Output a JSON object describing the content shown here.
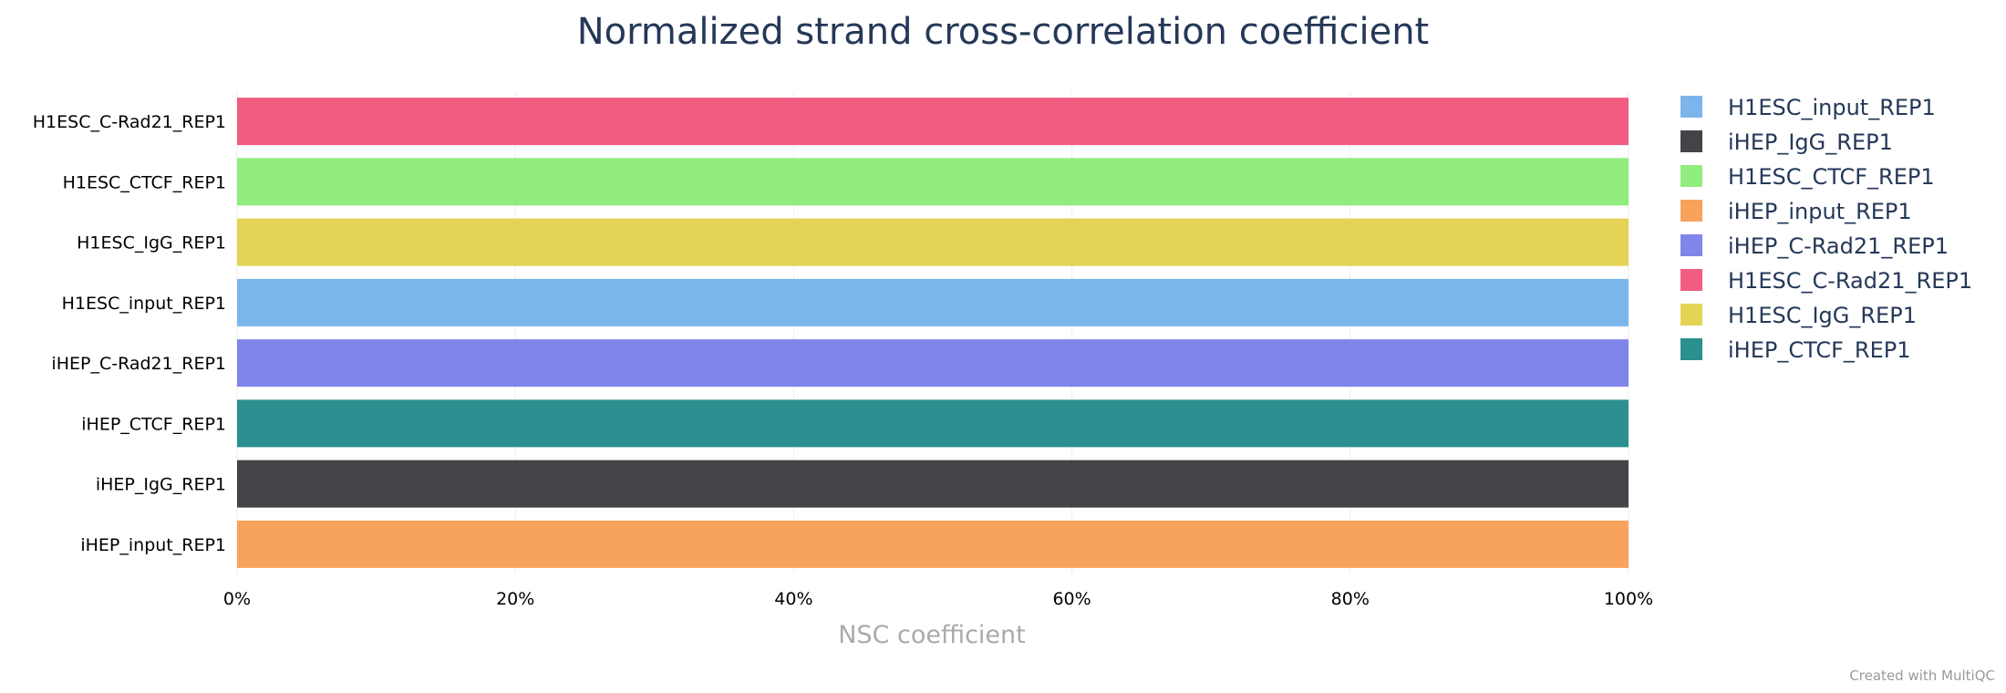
{
  "chart_data": {
    "type": "bar",
    "orientation": "horizontal",
    "stacked": true,
    "title": "Normalized strand cross-correlation coefficient",
    "xlabel": "NSC coefficient",
    "ylabel": "",
    "xlim": [
      0,
      100
    ],
    "x_ticks": [
      "0%",
      "20%",
      "40%",
      "60%",
      "80%",
      "100%"
    ],
    "grid": true,
    "legend_position": "right",
    "categories": [
      "H1ESC_C-Rad21_REP1",
      "H1ESC_CTCF_REP1",
      "H1ESC_IgG_REP1",
      "H1ESC_input_REP1",
      "iHEP_C-Rad21_REP1",
      "iHEP_CTCF_REP1",
      "iHEP_IgG_REP1",
      "iHEP_input_REP1"
    ],
    "series": [
      {
        "name": "H1ESC_input_REP1",
        "color": "#7cb5ec",
        "values": [
          0,
          0,
          0,
          100,
          0,
          0,
          0,
          0
        ]
      },
      {
        "name": "iHEP_IgG_REP1",
        "color": "#434348",
        "values": [
          0,
          0,
          0,
          0,
          0,
          0,
          100,
          0
        ]
      },
      {
        "name": "H1ESC_CTCF_REP1",
        "color": "#90ed7d",
        "values": [
          0,
          100,
          0,
          0,
          0,
          0,
          0,
          0
        ]
      },
      {
        "name": "iHEP_input_REP1",
        "color": "#f7a35c",
        "values": [
          0,
          0,
          0,
          0,
          0,
          0,
          0,
          100
        ]
      },
      {
        "name": "iHEP_C-Rad21_REP1",
        "color": "#8085e9",
        "values": [
          0,
          0,
          0,
          0,
          100,
          0,
          0,
          0
        ]
      },
      {
        "name": "H1ESC_C-Rad21_REP1",
        "color": "#f15c80",
        "values": [
          100,
          0,
          0,
          0,
          0,
          0,
          0,
          0
        ]
      },
      {
        "name": "H1ESC_IgG_REP1",
        "color": "#e4d354",
        "values": [
          0,
          0,
          100,
          0,
          0,
          0,
          0,
          0
        ]
      },
      {
        "name": "iHEP_CTCF_REP1",
        "color": "#2b908f",
        "values": [
          0,
          0,
          0,
          0,
          0,
          100,
          0,
          0
        ]
      }
    ]
  },
  "credit": "Created with MultiQC"
}
